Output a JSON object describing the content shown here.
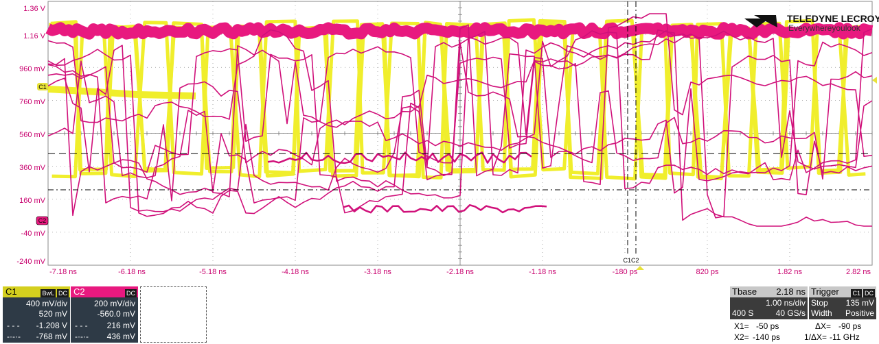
{
  "logo": {
    "brand": "TELEDYNE LECROY",
    "tagline": "Everywhereyoulook"
  },
  "grid": {
    "y_labels": [
      "1.36 V",
      "1.16 V",
      "960 mV",
      "760 mV",
      "560 mV",
      "360 mV",
      "160 mV",
      "-40 mV",
      "-240 mV"
    ],
    "x_labels": [
      "-7.18 ns",
      "-6.18 ns",
      "-5.18 ns",
      "-4.18 ns",
      "-3.18 ns",
      "-2.18 ns",
      "-1.18 ns",
      "-180 ps",
      "820 ps",
      "1.82 ns",
      "2.82 ns"
    ]
  },
  "markers": {
    "c1": "C1",
    "c2": "C2",
    "cursors": "C1C2"
  },
  "colors": {
    "c1": "#e8e23a",
    "c1_trace": "#f0ee2c",
    "c2": "#e8197f",
    "c2_trace": "#d0107a",
    "label": "#c8006e"
  },
  "channel1": {
    "name": "C1",
    "bwl": "BwL",
    "coupling": "DC",
    "vdiv": "400 mV/div",
    "offset": "520 mV",
    "cursor1": "-1.208 V",
    "cursor2": "-768 mV"
  },
  "channel2": {
    "name": "C2",
    "coupling": "DC",
    "vdiv": "200 mV/div",
    "offset": "-560.0 mV",
    "cursor1": "216 mV",
    "cursor2": "436 mV"
  },
  "timebase": {
    "title": "Tbase",
    "delay": "2.18 ns",
    "tdiv": "1.00 ns/div",
    "samples": "400 S",
    "rate": "40 GS/s"
  },
  "trigger": {
    "title": "Trigger",
    "ch": "C1",
    "coupling": "DC",
    "mode": "Stop",
    "level": "135 mV",
    "type": "Width",
    "slope": "Positive"
  },
  "measurements": {
    "x1_label": "X1=",
    "x1": "-50 ps",
    "dx_label": "ΔX=",
    "dx": "-90 ps",
    "x2_label": "X2=",
    "x2": "-140 ps",
    "inv_label": "1/ΔX=",
    "inv": "-11 GHz"
  }
}
